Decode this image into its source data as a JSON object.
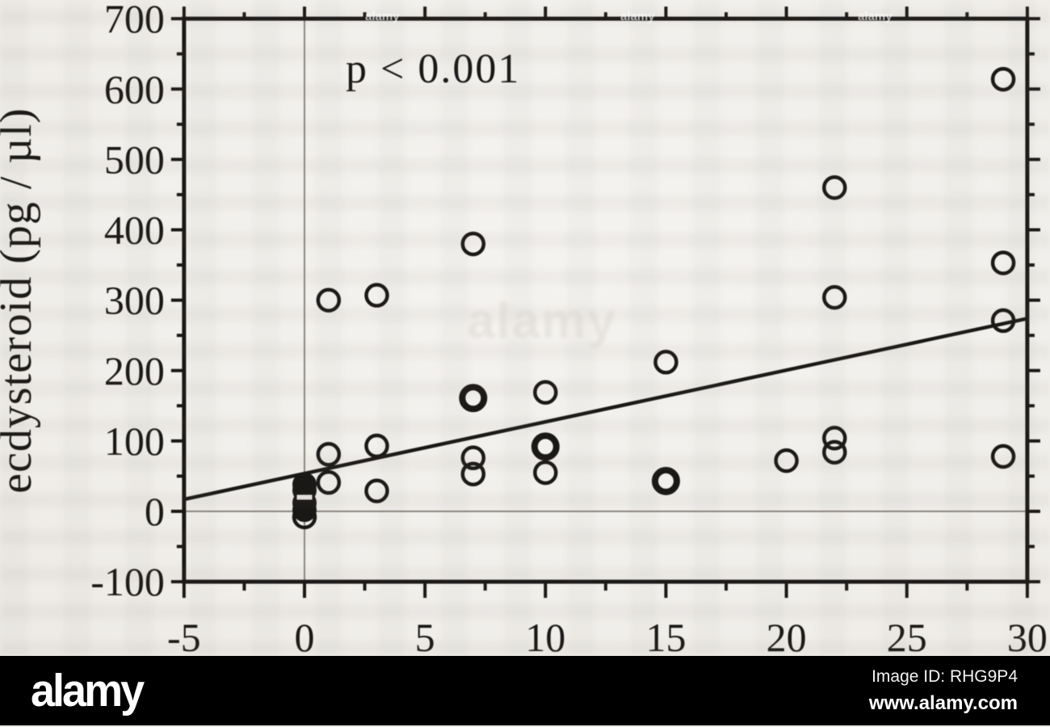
{
  "watermark": {
    "logo": "alamy",
    "ghost_text": "alamy",
    "speck_text": "alamy",
    "image_id": "Image ID: RHG9P4",
    "url": "www.alamy.com"
  },
  "chart_data": {
    "type": "scatter",
    "title": "",
    "xlabel": "",
    "ylabel": "ecdysteroid (pg / µl)",
    "annotation": "p < 0.001",
    "xlim": [
      -5,
      30
    ],
    "ylim": [
      -100,
      700
    ],
    "x_major_ticks": [
      -5,
      0,
      5,
      10,
      15,
      20,
      25,
      30
    ],
    "x_minor_interval": 2.5,
    "y_major_ticks": [
      -100,
      0,
      100,
      200,
      300,
      400,
      500,
      600,
      700
    ],
    "y_minor_interval": 50,
    "grid": {
      "vertical_x": 0,
      "horizontal_y": 0
    },
    "legend": "none",
    "regression_line": {
      "x1": -5,
      "y1": 17,
      "x2": 30,
      "y2": 274
    },
    "zero_cluster_gap_y": 20,
    "ink_color": "#1a1816",
    "grid_color": "#8b867f",
    "paper_color": "#f3f1ee",
    "points": [
      {
        "x": 0,
        "y": 38,
        "style": "filled"
      },
      {
        "x": 0,
        "y": 30,
        "style": "filled"
      },
      {
        "x": 0,
        "y": 12,
        "style": "filled"
      },
      {
        "x": 0,
        "y": 2,
        "style": "filled"
      },
      {
        "x": 0,
        "y": -8,
        "style": "open"
      },
      {
        "x": 1,
        "y": 300,
        "style": "open"
      },
      {
        "x": 1,
        "y": 81,
        "style": "open"
      },
      {
        "x": 1,
        "y": 41,
        "style": "open"
      },
      {
        "x": 3,
        "y": 307,
        "style": "open"
      },
      {
        "x": 3,
        "y": 93,
        "style": "open"
      },
      {
        "x": 3,
        "y": 29,
        "style": "open"
      },
      {
        "x": 7,
        "y": 380,
        "style": "open"
      },
      {
        "x": 7,
        "y": 161,
        "style": "bold"
      },
      {
        "x": 7,
        "y": 76,
        "style": "open"
      },
      {
        "x": 7,
        "y": 53,
        "style": "open"
      },
      {
        "x": 10,
        "y": 169,
        "style": "open"
      },
      {
        "x": 10,
        "y": 92,
        "style": "bold"
      },
      {
        "x": 10,
        "y": 55,
        "style": "open"
      },
      {
        "x": 15,
        "y": 212,
        "style": "open"
      },
      {
        "x": 15,
        "y": 43,
        "style": "bold"
      },
      {
        "x": 20,
        "y": 72,
        "style": "open"
      },
      {
        "x": 22,
        "y": 460,
        "style": "open"
      },
      {
        "x": 22,
        "y": 304,
        "style": "open"
      },
      {
        "x": 22,
        "y": 104,
        "style": "open"
      },
      {
        "x": 22,
        "y": 84,
        "style": "open"
      },
      {
        "x": 29,
        "y": 614,
        "style": "open"
      },
      {
        "x": 29,
        "y": 353,
        "style": "open"
      },
      {
        "x": 29,
        "y": 271,
        "style": "open"
      },
      {
        "x": 29,
        "y": 78,
        "style": "open"
      }
    ]
  }
}
